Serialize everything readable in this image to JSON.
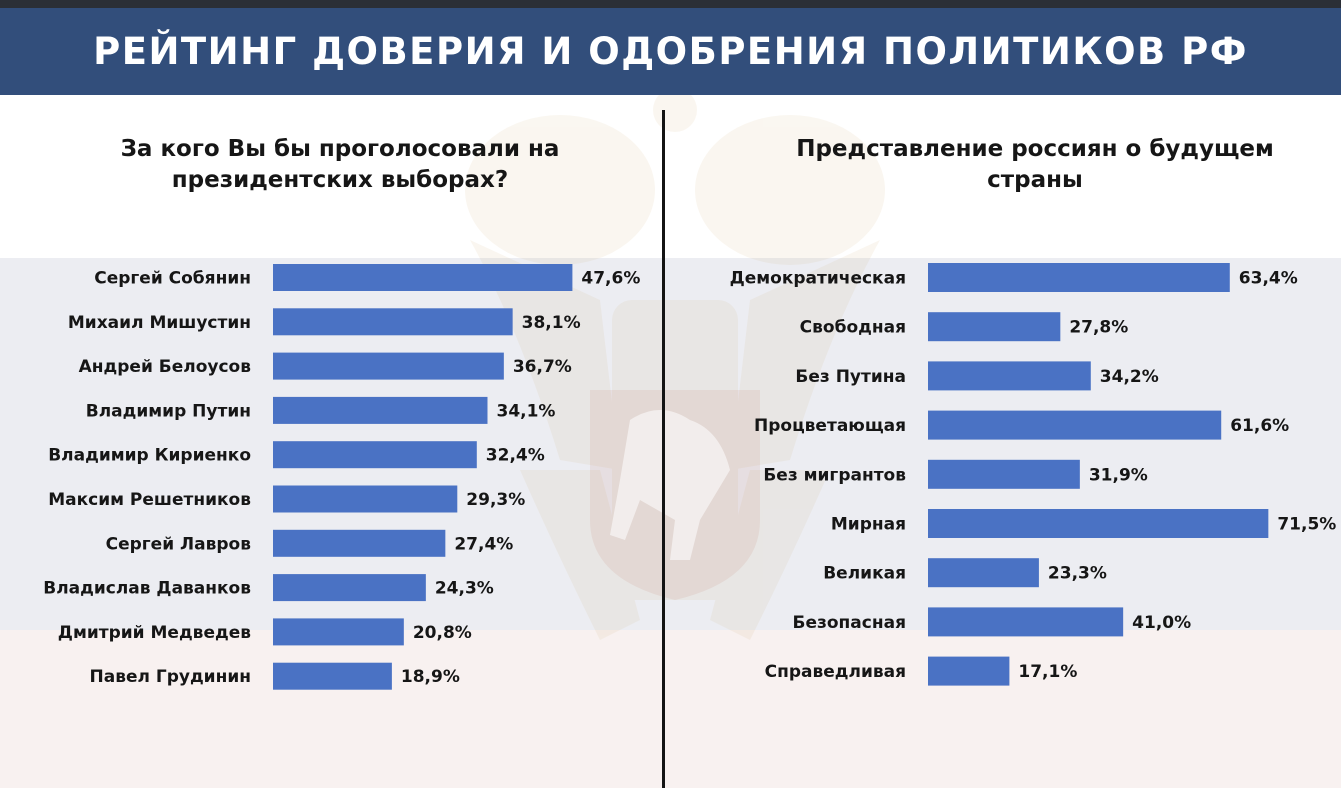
{
  "header": {
    "title": "РЕЙТИНГ ДОВЕРИЯ И ОДОБРЕНИЯ ПОЛИТИКОВ РФ"
  },
  "colors": {
    "bar": "#4a72c4",
    "header_bg": "#324e7b",
    "text": "#161616"
  },
  "chart_data": [
    {
      "type": "bar",
      "orientation": "horizontal",
      "title_lines": [
        "За кого Вы бы проголосовали на",
        "президентских выборах?"
      ],
      "categories": [
        "Сергей Собянин",
        "Михаил Мишустин",
        "Андрей Белоусов",
        "Владимир Путин",
        "Владимир Кириенко",
        "Максим Решетников",
        "Сергей Лавров",
        "Владислав Даванков",
        "Дмитрий Медведев",
        "Павел Грудинин"
      ],
      "values": [
        47.6,
        38.1,
        36.7,
        34.1,
        32.4,
        29.3,
        27.4,
        24.3,
        20.8,
        18.9
      ],
      "value_labels": [
        "47,6%",
        "38,1%",
        "36,7%",
        "34,1%",
        "32,4%",
        "29,3%",
        "27,4%",
        "24,3%",
        "20,8%",
        "18,9%"
      ],
      "unit": "%",
      "xlim": [
        0,
        100
      ],
      "grid": false,
      "legend": "none"
    },
    {
      "type": "bar",
      "orientation": "horizontal",
      "title_lines": [
        "Представление россиян о будущем",
        "страны"
      ],
      "categories": [
        "Демократическая",
        "Свободная",
        "Без Путина",
        "Процветающая",
        "Без мигрантов",
        "Мирная",
        "Великая",
        "Безопасная",
        "Справедливая"
      ],
      "values": [
        63.4,
        27.8,
        34.2,
        61.6,
        31.9,
        71.5,
        23.3,
        41.0,
        17.1
      ],
      "value_labels": [
        "63,4%",
        "27,8%",
        "34,2%",
        "61,6%",
        "31,9%",
        "71,5%",
        "23,3%",
        "41,0%",
        "17,1%"
      ],
      "unit": "%",
      "xlim": [
        0,
        100
      ],
      "grid": false,
      "legend": "none"
    }
  ]
}
